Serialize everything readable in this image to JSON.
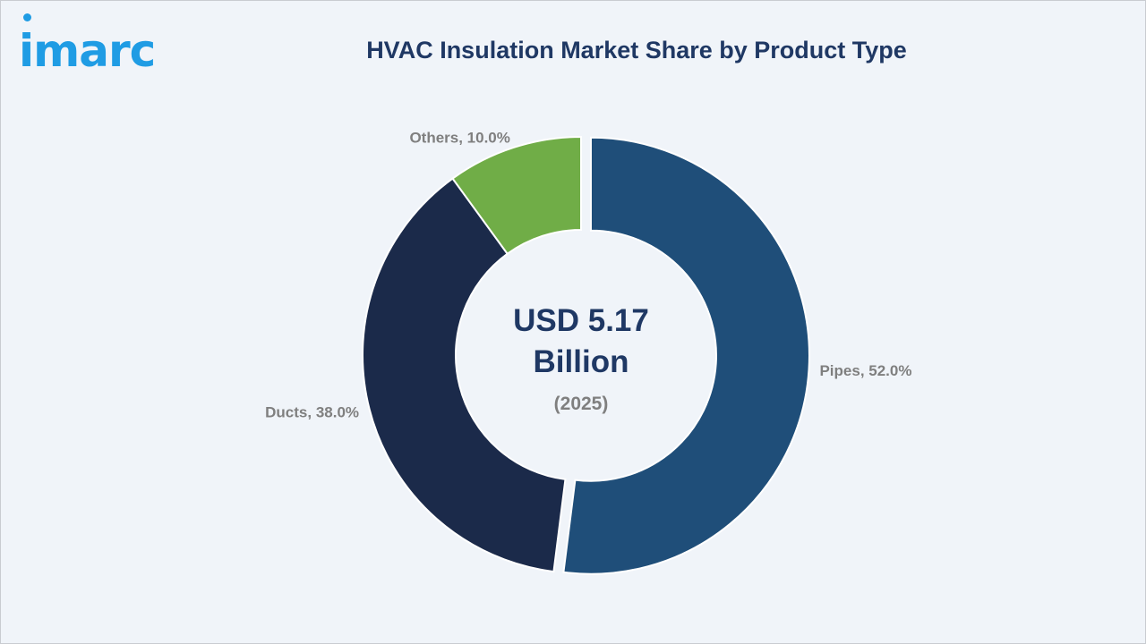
{
  "brand": {
    "logo_text": "imarc",
    "logo_color": "#1f9ce4"
  },
  "chart_data": {
    "type": "pie",
    "title": "HVAC Insulation Market Share by Product Type",
    "center_value": "USD 5.17\nBillion",
    "center_subtitle": "(2025)",
    "slices": [
      {
        "label": "Pipes, 52.0%",
        "name": "Pipes",
        "value": 52.0,
        "color": "#1f4e79",
        "exploded": true
      },
      {
        "label": "Ducts, 38.0%",
        "name": "Ducts",
        "value": 38.0,
        "color": "#1b2a4a",
        "exploded": false
      },
      {
        "label": "Others, 10.0%",
        "name": "Others",
        "value": 10.0,
        "color": "#70ad47",
        "exploded": false
      }
    ],
    "donut": true,
    "legend": "none"
  },
  "colors": {
    "background": "#f0f4f9",
    "title": "#1f3864",
    "label": "#7f7f7f",
    "center_text": "#1f3864",
    "slice_border": "#ffffff"
  }
}
